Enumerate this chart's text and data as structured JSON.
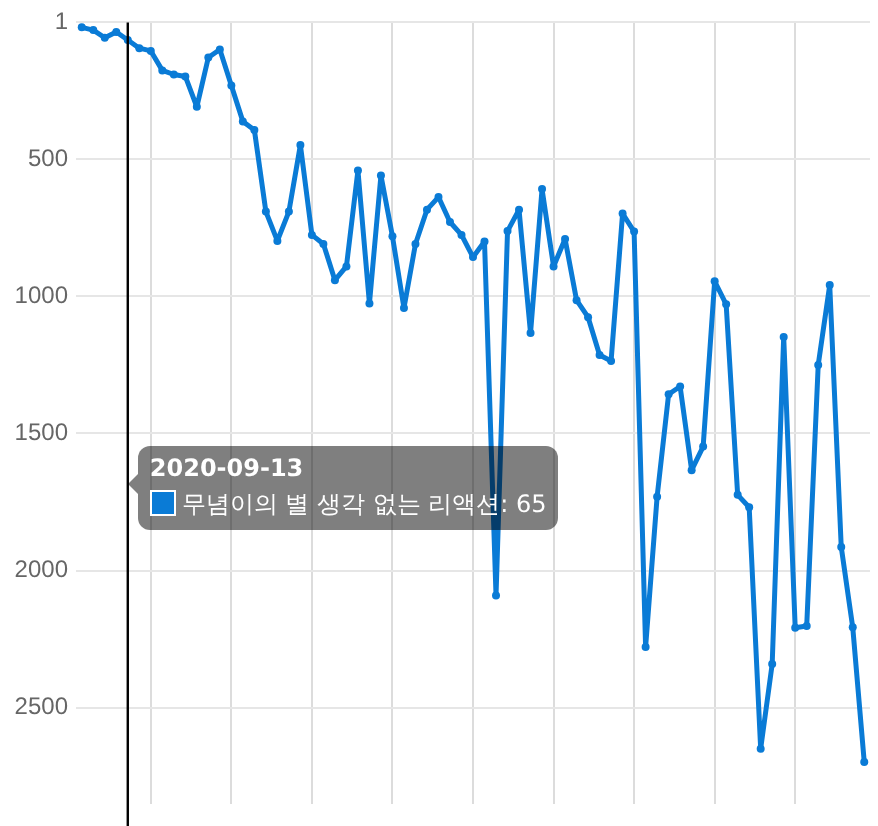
{
  "chart_data": {
    "type": "line",
    "categories": [
      null,
      null,
      null,
      null,
      null,
      null,
      null,
      null,
      null,
      null,
      null,
      null,
      null,
      null,
      null,
      null,
      null,
      null,
      null,
      null,
      null,
      null,
      null,
      null,
      null,
      null,
      null,
      null,
      null,
      null,
      null,
      null,
      null,
      null,
      null,
      null,
      null,
      null,
      null,
      null,
      null,
      null,
      null,
      null,
      null,
      null,
      null,
      null,
      null,
      null,
      null,
      null,
      null,
      null,
      null,
      null,
      null,
      null,
      null,
      null,
      null,
      null,
      null,
      null,
      null,
      null,
      null,
      null,
      null
    ],
    "series": [
      {
        "name": "무념이의 별 생각 없는 리액션:",
        "color": "#0a7bd6",
        "values": [
          19,
          29,
          57,
          36,
          65,
          95,
          105,
          176,
          191,
          198,
          309,
          129,
          100,
          231,
          362,
          393,
          691,
          798,
          691,
          448,
          776,
          809,
          941,
          891,
          541,
          1026,
          559,
          781,
          1043,
          809,
          684,
          638,
          729,
          776,
          857,
          800,
          2091,
          762,
          684,
          1134,
          609,
          891,
          791,
          1014,
          1076,
          1214,
          1236,
          698,
          764,
          2279,
          1731,
          1357,
          1329,
          1634,
          1548,
          945,
          1029,
          1724,
          1769,
          2650,
          2341,
          1148,
          2209,
          2202,
          1250,
          959,
          1914,
          2207,
          2698
        ],
        "value_labels": [
          null,
          null,
          null,
          null,
          "65",
          null,
          null,
          null,
          null,
          null,
          null,
          null,
          null,
          null,
          null,
          null,
          null,
          null,
          null,
          null,
          null,
          null,
          null,
          null,
          null,
          null,
          null,
          null,
          null,
          null,
          null,
          null,
          null,
          null,
          null,
          null,
          null,
          null,
          null,
          null,
          null,
          null,
          null,
          null,
          null,
          null,
          null,
          null,
          null,
          null,
          null,
          null,
          null,
          null,
          null,
          null,
          null,
          null,
          null,
          null,
          null,
          null,
          null,
          null,
          null,
          null,
          null,
          null,
          null
        ]
      }
    ],
    "ylim": [
      2850,
      1
    ],
    "yticks": [
      1,
      500,
      1000,
      1500,
      2000,
      2500
    ],
    "tick_labels": "y",
    "grid": true,
    "legend": false,
    "marker": "circle",
    "line_style": "solid",
    "annotations": [
      "2020-09-13"
    ]
  }
}
